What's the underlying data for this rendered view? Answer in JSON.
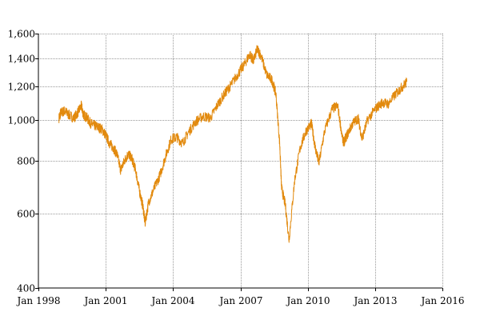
{
  "chart_data": {
    "type": "line",
    "title": "",
    "xlabel": "",
    "ylabel": "",
    "yscale": "log",
    "ylim": [
      400,
      1600
    ],
    "xlim": [
      "1998-01",
      "2016-01"
    ],
    "grid": true,
    "legend": "none",
    "x_ticks": [
      "Jan 1998",
      "Jan 2001",
      "Jan 2004",
      "Jan 2007",
      "Jan 2010",
      "Jan 2013",
      "Jan 2016"
    ],
    "y_ticks": [
      "1,600",
      "1,400",
      "1,200",
      "1,000",
      "800",
      "600",
      "400"
    ],
    "colors": {
      "series": "#e28a0e",
      "grid": "#9a9a9a",
      "axis": "#000000"
    },
    "series": [
      {
        "name": "",
        "points": [
          [
            "1998-12",
            1010
          ],
          [
            "1999-01",
            1040
          ],
          [
            "1999-03",
            1050
          ],
          [
            "1999-05",
            1030
          ],
          [
            "1999-08",
            1010
          ],
          [
            "1999-10",
            1040
          ],
          [
            "1999-12",
            1080
          ],
          [
            "2000-01",
            1030
          ],
          [
            "2000-03",
            1010
          ],
          [
            "2000-05",
            980
          ],
          [
            "2000-07",
            970
          ],
          [
            "2000-09",
            960
          ],
          [
            "2000-11",
            950
          ],
          [
            "2001-01",
            920
          ],
          [
            "2001-03",
            880
          ],
          [
            "2001-05",
            860
          ],
          [
            "2001-07",
            830
          ],
          [
            "2001-09",
            760
          ],
          [
            "2001-11",
            800
          ],
          [
            "2002-01",
            830
          ],
          [
            "2002-03",
            810
          ],
          [
            "2002-05",
            760
          ],
          [
            "2002-07",
            680
          ],
          [
            "2002-09",
            620
          ],
          [
            "2002-10",
            570
          ],
          [
            "2002-12",
            640
          ],
          [
            "2003-03",
            690
          ],
          [
            "2003-06",
            740
          ],
          [
            "2003-09",
            820
          ],
          [
            "2003-12",
            900
          ],
          [
            "2004-03",
            910
          ],
          [
            "2004-06",
            880
          ],
          [
            "2004-09",
            930
          ],
          [
            "2005-01",
            990
          ],
          [
            "2005-05",
            1020
          ],
          [
            "2005-09",
            1010
          ],
          [
            "2006-01",
            1090
          ],
          [
            "2006-05",
            1160
          ],
          [
            "2006-08",
            1210
          ],
          [
            "2006-12",
            1290
          ],
          [
            "2007-03",
            1350
          ],
          [
            "2007-06",
            1430
          ],
          [
            "2007-08",
            1380
          ],
          [
            "2007-10",
            1470
          ],
          [
            "2007-12",
            1420
          ],
          [
            "2008-03",
            1280
          ],
          [
            "2008-06",
            1240
          ],
          [
            "2008-08",
            1150
          ],
          [
            "2008-10",
            880
          ],
          [
            "2008-11",
            690
          ],
          [
            "2009-01",
            630
          ],
          [
            "2009-03",
            520
          ],
          [
            "2009-06",
            720
          ],
          [
            "2009-09",
            860
          ],
          [
            "2009-12",
            940
          ],
          [
            "2010-03",
            980
          ],
          [
            "2010-05",
            860
          ],
          [
            "2010-07",
            790
          ],
          [
            "2010-10",
            940
          ],
          [
            "2011-02",
            1060
          ],
          [
            "2011-05",
            1080
          ],
          [
            "2011-08",
            880
          ],
          [
            "2011-10",
            920
          ],
          [
            "2012-01",
            980
          ],
          [
            "2012-04",
            1010
          ],
          [
            "2012-06",
            900
          ],
          [
            "2012-09",
            1000
          ],
          [
            "2013-01",
            1060
          ],
          [
            "2013-05",
            1100
          ],
          [
            "2013-08",
            1090
          ],
          [
            "2013-12",
            1150
          ],
          [
            "2014-03",
            1190
          ],
          [
            "2014-06",
            1230
          ]
        ]
      }
    ]
  }
}
